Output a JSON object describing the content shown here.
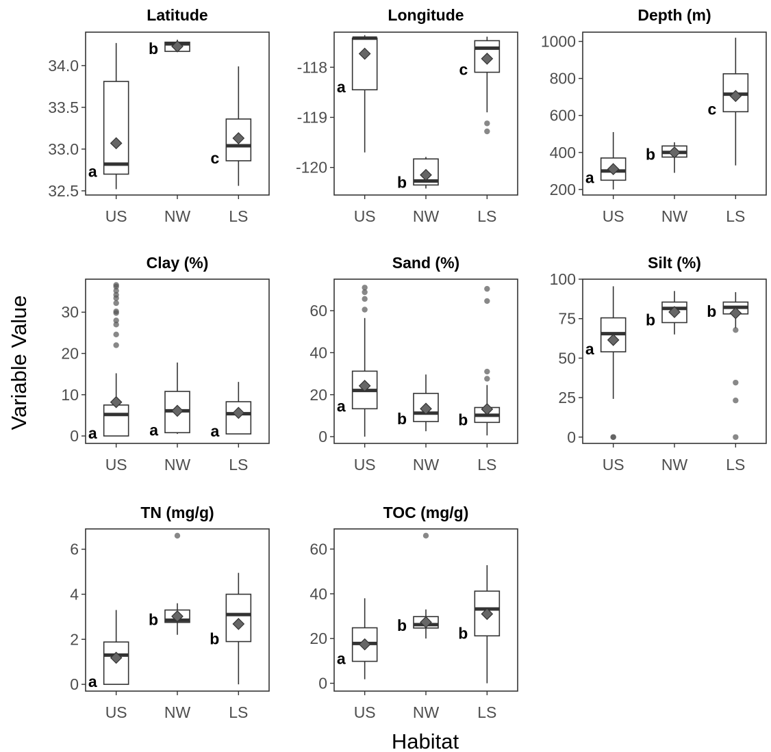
{
  "figure": {
    "ylabel": "Variable Value",
    "xlabel": "Habitat"
  },
  "chart_data": [
    {
      "type": "box",
      "title": "Latitude",
      "categories": [
        "US",
        "NW",
        "LS"
      ],
      "yticks": [
        32.5,
        33.0,
        33.5,
        34.0
      ],
      "tick_labels": [
        "32.5",
        "33.0",
        "33.5",
        "34.0"
      ],
      "ylim": [
        32.45,
        34.4
      ],
      "boxes": [
        {
          "low": 32.52,
          "q1": 32.7,
          "median": 32.82,
          "q3": 33.81,
          "high": 34.27,
          "mean": 33.07,
          "outliers": []
        },
        {
          "low": 34.17,
          "q1": 34.17,
          "median": 34.26,
          "q3": 34.28,
          "high": 34.31,
          "mean": 34.23,
          "outliers": []
        },
        {
          "low": 32.56,
          "q1": 32.86,
          "median": 33.04,
          "q3": 33.36,
          "high": 33.99,
          "mean": 33.13,
          "outliers": []
        }
      ],
      "letters": [
        "a",
        "b",
        "c"
      ]
    },
    {
      "type": "box",
      "title": "Longitude",
      "categories": [
        "US",
        "NW",
        "LS"
      ],
      "yticks": [
        -120,
        -119,
        -118
      ],
      "tick_labels": [
        "-120",
        "-119",
        "-118"
      ],
      "ylim": [
        -120.55,
        -117.3
      ],
      "boxes": [
        {
          "low": -119.7,
          "q1": -118.45,
          "median": -117.42,
          "q3": -117.42,
          "high": -117.36,
          "mean": -117.73,
          "outliers": []
        },
        {
          "low": -120.42,
          "q1": -120.35,
          "median": -120.27,
          "q3": -119.83,
          "high": -119.79,
          "mean": -120.15,
          "outliers": []
        },
        {
          "low": -118.9,
          "q1": -118.1,
          "median": -117.62,
          "q3": -117.47,
          "high": -117.39,
          "mean": -117.83,
          "outliers": [
            -119.12,
            -119.28
          ]
        }
      ],
      "letters": [
        "a",
        "b",
        "c"
      ]
    },
    {
      "type": "box",
      "title": "Depth (m)",
      "categories": [
        "US",
        "NW",
        "LS"
      ],
      "yticks": [
        200,
        400,
        600,
        800,
        1000
      ],
      "tick_labels": [
        "200",
        "400",
        "600",
        "800",
        "1000"
      ],
      "ylim": [
        170,
        1050
      ],
      "boxes": [
        {
          "low": 200,
          "q1": 250,
          "median": 300,
          "q3": 370,
          "high": 510,
          "mean": 310,
          "outliers": []
        },
        {
          "low": 290,
          "q1": 375,
          "median": 400,
          "q3": 435,
          "high": 455,
          "mean": 400,
          "outliers": []
        },
        {
          "low": 330,
          "q1": 620,
          "median": 715,
          "q3": 825,
          "high": 1020,
          "mean": 705,
          "outliers": []
        }
      ],
      "letters": [
        "a",
        "b",
        "c"
      ]
    },
    {
      "type": "box",
      "title": "Clay (%)",
      "categories": [
        "US",
        "NW",
        "LS"
      ],
      "yticks": [
        0,
        10,
        20,
        30
      ],
      "tick_labels": [
        "0",
        "10",
        "20",
        "30"
      ],
      "ylim": [
        -1.8,
        38
      ],
      "boxes": [
        {
          "low": 0,
          "q1": 0,
          "median": 5.2,
          "q3": 7.5,
          "high": 15.2,
          "mean": 8.2,
          "outliers": [
            22,
            24.6,
            27,
            28,
            29.8,
            30.2,
            32.2,
            33.4,
            34.2,
            35.2,
            36.2,
            36.6
          ]
        },
        {
          "low": 0.5,
          "q1": 0.8,
          "median": 6.1,
          "q3": 10.8,
          "high": 17.8,
          "mean": 6.1,
          "outliers": []
        },
        {
          "low": 0.5,
          "q1": 0.5,
          "median": 5.4,
          "q3": 8.3,
          "high": 13.1,
          "mean": 5.6,
          "outliers": []
        }
      ],
      "letters": [
        "a",
        "a",
        "a"
      ]
    },
    {
      "type": "box",
      "title": "Sand (%)",
      "categories": [
        "US",
        "NW",
        "LS"
      ],
      "yticks": [
        0,
        20,
        40,
        60
      ],
      "tick_labels": [
        "0",
        "20",
        "40",
        "60"
      ],
      "ylim": [
        -3.2,
        75
      ],
      "boxes": [
        {
          "low": 0,
          "q1": 13.3,
          "median": 22,
          "q3": 31.2,
          "high": 56.5,
          "mean": 24.2,
          "outliers": [
            60.5,
            65.6,
            68.8,
            71
          ]
        },
        {
          "low": 2.6,
          "q1": 7.2,
          "median": 11.2,
          "q3": 20.6,
          "high": 29.6,
          "mean": 13.3,
          "outliers": []
        },
        {
          "low": 0.6,
          "q1": 6.8,
          "median": 10.2,
          "q3": 13.9,
          "high": 24.6,
          "mean": 13.1,
          "outliers": [
            27.6,
            31,
            64.6,
            70.4
          ]
        }
      ],
      "letters": [
        "a",
        "b",
        "b"
      ]
    },
    {
      "type": "box",
      "title": "Silt (%)",
      "categories": [
        "US",
        "NW",
        "LS"
      ],
      "yticks": [
        0,
        25,
        50,
        75,
        100
      ],
      "tick_labels": [
        "0",
        "25",
        "50",
        "75",
        "100"
      ],
      "ylim": [
        -4,
        100
      ],
      "boxes": [
        {
          "low": 24.2,
          "q1": 54,
          "median": 65.5,
          "q3": 75.5,
          "high": 95.5,
          "mean": 61.5,
          "outliers": [
            0,
            0
          ]
        },
        {
          "low": 65,
          "q1": 72.5,
          "median": 81.5,
          "q3": 85.5,
          "high": 92.5,
          "mean": 79.2,
          "outliers": []
        },
        {
          "low": 69,
          "q1": 78,
          "median": 82.2,
          "q3": 85.5,
          "high": 91.8,
          "mean": 78.5,
          "outliers": [
            67.8,
            34.5,
            23.2,
            0
          ]
        }
      ],
      "letters": [
        "a",
        "b",
        "b"
      ]
    },
    {
      "type": "box",
      "title": "TN (mg/g)",
      "categories": [
        "US",
        "NW",
        "LS"
      ],
      "yticks": [
        0,
        2,
        4,
        6
      ],
      "tick_labels": [
        "0",
        "2",
        "4",
        "6"
      ],
      "ylim": [
        -0.3,
        6.9
      ],
      "boxes": [
        {
          "low": 0,
          "q1": 0,
          "median": 1.3,
          "q3": 1.88,
          "high": 3.3,
          "mean": 1.18,
          "outliers": []
        },
        {
          "low": 2.2,
          "q1": 2.75,
          "median": 2.85,
          "q3": 3.3,
          "high": 3.6,
          "mean": 3.02,
          "outliers": [
            6.6
          ]
        },
        {
          "low": 0,
          "q1": 1.9,
          "median": 3.1,
          "q3": 4,
          "high": 4.95,
          "mean": 2.68,
          "outliers": []
        }
      ],
      "letters": [
        "a",
        "b",
        "b"
      ]
    },
    {
      "type": "box",
      "title": "TOC (mg/g)",
      "categories": [
        "US",
        "NW",
        "LS"
      ],
      "yticks": [
        0,
        20,
        40,
        60
      ],
      "tick_labels": [
        "0",
        "20",
        "40",
        "60"
      ],
      "ylim": [
        -3.5,
        69
      ],
      "boxes": [
        {
          "low": 1.8,
          "q1": 9.8,
          "median": 17.8,
          "q3": 24.8,
          "high": 38,
          "mean": 17.4,
          "outliers": []
        },
        {
          "low": 20,
          "q1": 24.7,
          "median": 26.2,
          "q3": 29.8,
          "high": 33,
          "mean": 27.3,
          "outliers": [
            66
          ]
        },
        {
          "low": 0,
          "q1": 21.2,
          "median": 33.2,
          "q3": 41.2,
          "high": 52.8,
          "mean": 31,
          "outliers": []
        }
      ],
      "letters": [
        "a",
        "b",
        "b"
      ]
    }
  ]
}
